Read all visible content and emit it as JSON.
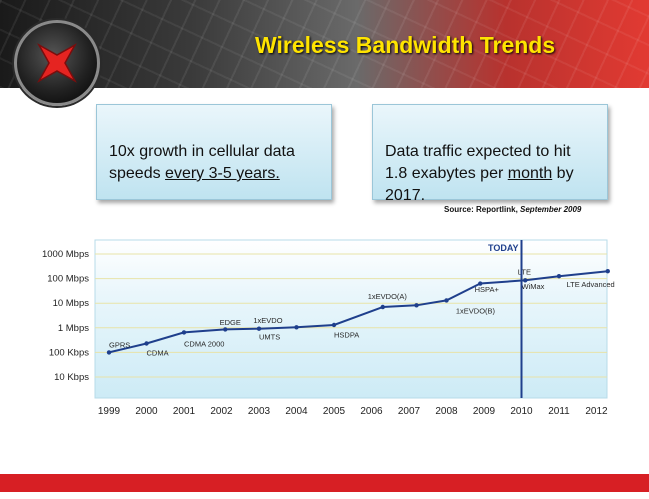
{
  "slide": {
    "title": "Wireless Bandwidth Trends",
    "callout_left": {
      "pre": "10x growth in cellular data speeds ",
      "underlined": "every 3-5 years.",
      "post": ""
    },
    "callout_right": {
      "pre": "Data traffic expected to hit 1.8 exabytes per ",
      "underlined": "month",
      "post": " by 2017."
    },
    "source_prefix": "Source: Reportlink, ",
    "source_date": "September 2009"
  },
  "colors": {
    "accent_red": "#d71f24",
    "title_yellow": "#ffe400",
    "series_blue": "#1f3f8c",
    "plot_bg": "#dff2f9"
  },
  "icons": {
    "logo": "red-x-logo-icon"
  },
  "chart_data": {
    "type": "line",
    "title": "",
    "xlabel": "",
    "ylabel": "",
    "y_scale": "log",
    "ylim_kbps": [
      10,
      1000000
    ],
    "ytick_values_kbps": [
      1000000,
      100000,
      10000,
      1000,
      100,
      10
    ],
    "ytick_labels": [
      "1000 Mbps",
      "100 Mbps",
      "10 Mbps",
      "1 Mbps",
      "100 Kbps",
      "10 Kbps"
    ],
    "x_categories": [
      "1999",
      "2000",
      "2001",
      "2002",
      "2003",
      "2004",
      "2005",
      "2006",
      "2007",
      "2008",
      "2009",
      "2010",
      "2011",
      "2012"
    ],
    "grid": "horizontal",
    "series": [
      {
        "points": [
          {
            "x": 1999.0,
            "y_kbps": 100
          },
          {
            "x": 2000.0,
            "y_kbps": 230
          },
          {
            "x": 2001.0,
            "y_kbps": 650
          },
          {
            "x": 2002.1,
            "y_kbps": 860
          },
          {
            "x": 2003.0,
            "y_kbps": 920
          },
          {
            "x": 2004.0,
            "y_kbps": 1050
          },
          {
            "x": 2005.0,
            "y_kbps": 1300
          },
          {
            "x": 2006.3,
            "y_kbps": 7000
          },
          {
            "x": 2007.2,
            "y_kbps": 8200
          },
          {
            "x": 2008.0,
            "y_kbps": 13000
          },
          {
            "x": 2008.9,
            "y_kbps": 63000
          },
          {
            "x": 2010.1,
            "y_kbps": 85000
          },
          {
            "x": 2011.0,
            "y_kbps": 125000
          },
          {
            "x": 2012.3,
            "y_kbps": 200000
          }
        ]
      }
    ],
    "today_marker": {
      "x": 2010.0,
      "label": "TODAY"
    },
    "annotations": [
      {
        "text": "GPRS",
        "x": 1999.0,
        "y_kbps": 160
      },
      {
        "text": "CDMA",
        "x": 2000.0,
        "y_kbps": 75
      },
      {
        "text": "CDMA 2000",
        "x": 2001.0,
        "y_kbps": 170
      },
      {
        "text": "EDGE",
        "x": 2001.95,
        "y_kbps": 1300
      },
      {
        "text": "1xEVDO",
        "x": 2002.85,
        "y_kbps": 1600
      },
      {
        "text": "UMTS",
        "x": 2003.0,
        "y_kbps": 330
      },
      {
        "text": "HSDPA",
        "x": 2005.0,
        "y_kbps": 400
      },
      {
        "text": "1xEVDO(A)",
        "x": 2005.9,
        "y_kbps": 15000
      },
      {
        "text": "1xEVDO(B)",
        "x": 2008.25,
        "y_kbps": 3900
      },
      {
        "text": "HSPA+",
        "x": 2008.75,
        "y_kbps": 28000
      },
      {
        "text": "LTE",
        "x": 2009.9,
        "y_kbps": 150000
      },
      {
        "text": "WiMax",
        "x": 2010.0,
        "y_kbps": 38000
      },
      {
        "text": "LTE Advanced",
        "x": 2011.2,
        "y_kbps": 45000
      }
    ]
  }
}
